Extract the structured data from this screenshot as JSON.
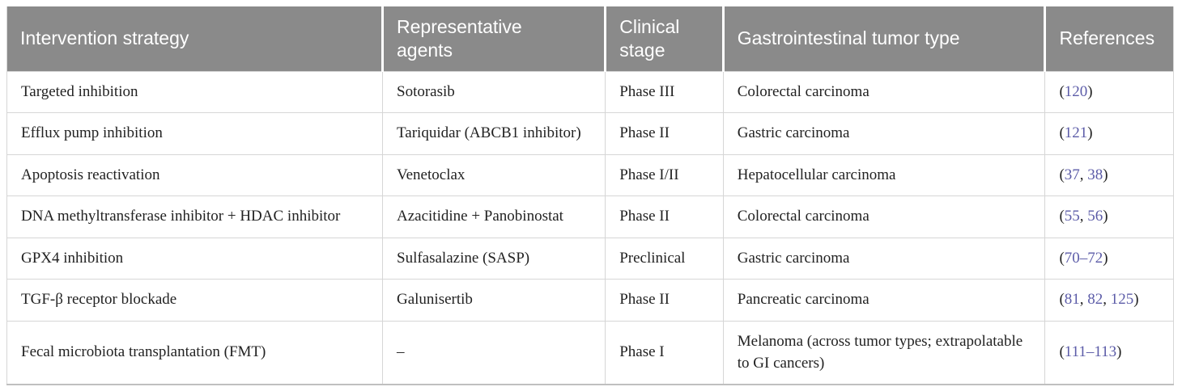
{
  "colors": {
    "header_bg": "#8a8a8a",
    "header_text": "#ffffff",
    "body_text": "#222222",
    "link": "#5c5ca8",
    "border": "#d6d6d6",
    "bottom_border": "#c0c0c0"
  },
  "table": {
    "columns": [
      "Intervention strategy",
      "Representative agents",
      "Clinical stage",
      "Gastrointestinal tumor type",
      "References"
    ],
    "rows": [
      {
        "intervention": "Targeted inhibition",
        "agents": "Sotorasib",
        "stage": "Phase III",
        "tumor": "Colorectal carcinoma",
        "references": [
          {
            "text": "(",
            "link": false
          },
          {
            "text": "120",
            "link": true
          },
          {
            "text": ")",
            "link": false
          }
        ]
      },
      {
        "intervention": "Efflux pump inhibition",
        "agents": "Tariquidar (ABCB1 inhibitor)",
        "stage": "Phase II",
        "tumor": "Gastric carcinoma",
        "references": [
          {
            "text": "(",
            "link": false
          },
          {
            "text": "121",
            "link": true
          },
          {
            "text": ")",
            "link": false
          }
        ]
      },
      {
        "intervention": "Apoptosis reactivation",
        "agents": "Venetoclax",
        "stage": "Phase I/II",
        "tumor": "Hepatocellular carcinoma",
        "references": [
          {
            "text": "(",
            "link": false
          },
          {
            "text": "37",
            "link": true
          },
          {
            "text": ", ",
            "link": false
          },
          {
            "text": "38",
            "link": true
          },
          {
            "text": ")",
            "link": false
          }
        ]
      },
      {
        "intervention": "DNA methyltransferase inhibitor + HDAC inhibitor",
        "agents": "Azacitidine + Panobinostat",
        "stage": "Phase II",
        "tumor": "Colorectal carcinoma",
        "references": [
          {
            "text": "(",
            "link": false
          },
          {
            "text": "55",
            "link": true
          },
          {
            "text": ", ",
            "link": false
          },
          {
            "text": "56",
            "link": true
          },
          {
            "text": ")",
            "link": false
          }
        ]
      },
      {
        "intervention": "GPX4 inhibition",
        "agents": "Sulfasalazine (SASP)",
        "stage": "Preclinical",
        "tumor": "Gastric carcinoma",
        "references": [
          {
            "text": "(",
            "link": false
          },
          {
            "text": "70–72",
            "link": true
          },
          {
            "text": ")",
            "link": false
          }
        ]
      },
      {
        "intervention": "TGF-β receptor blockade",
        "agents": "Galunisertib",
        "stage": "Phase II",
        "tumor": "Pancreatic carcinoma",
        "references": [
          {
            "text": "(",
            "link": false
          },
          {
            "text": "81",
            "link": true
          },
          {
            "text": ", ",
            "link": false
          },
          {
            "text": "82",
            "link": true
          },
          {
            "text": ", ",
            "link": false
          },
          {
            "text": "125",
            "link": true
          },
          {
            "text": ")",
            "link": false
          }
        ]
      },
      {
        "intervention": "Fecal microbiota transplantation (FMT)",
        "agents": "–",
        "stage": "Phase I",
        "tumor": "Melanoma (across tumor types; extrapolatable to GI cancers)",
        "references": [
          {
            "text": "(",
            "link": false
          },
          {
            "text": "111–113",
            "link": true
          },
          {
            "text": ")",
            "link": false
          }
        ]
      }
    ]
  }
}
